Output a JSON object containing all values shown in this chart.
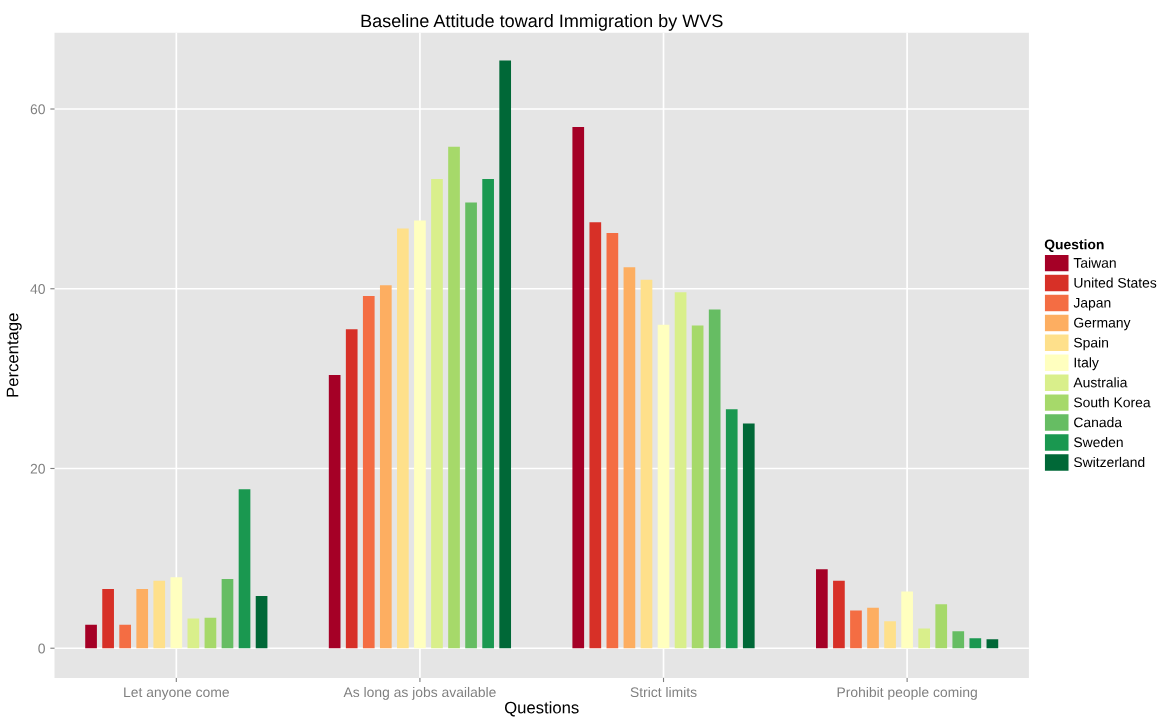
{
  "chart_data": {
    "type": "bar",
    "title": "Baseline Attitude toward Immigration by WVS",
    "xlabel": "Questions",
    "ylabel": "Percentage",
    "legend_title": "Question",
    "categories": [
      "Let anyone come",
      "As long as jobs available",
      "Strict limits",
      "Prohibit people coming"
    ],
    "series": [
      {
        "name": "Taiwan",
        "color": "#a50026",
        "values": [
          2.6,
          30.4,
          58.0,
          8.8
        ]
      },
      {
        "name": "United States",
        "color": "#d73027",
        "values": [
          6.6,
          35.5,
          47.4,
          7.5
        ]
      },
      {
        "name": "Japan",
        "color": "#f46d43",
        "values": [
          2.6,
          39.2,
          46.2,
          4.2
        ]
      },
      {
        "name": "Germany",
        "color": "#fdae61",
        "values": [
          6.6,
          40.4,
          42.4,
          4.5
        ]
      },
      {
        "name": "Spain",
        "color": "#fee08b",
        "values": [
          7.5,
          46.7,
          41.0,
          3.0
        ]
      },
      {
        "name": "Italy",
        "color": "#ffffbf",
        "values": [
          7.9,
          47.6,
          36.0,
          6.3
        ]
      },
      {
        "name": "Australia",
        "color": "#d9ef8b",
        "values": [
          3.3,
          52.2,
          39.6,
          2.2
        ]
      },
      {
        "name": "South Korea",
        "color": "#a6d96a",
        "values": [
          3.4,
          55.8,
          35.9,
          4.9
        ]
      },
      {
        "name": "Canada",
        "color": "#66bd63",
        "values": [
          7.7,
          49.6,
          37.7,
          1.9
        ]
      },
      {
        "name": "Sweden",
        "color": "#1a9850",
        "values": [
          17.7,
          52.2,
          26.6,
          1.1
        ]
      },
      {
        "name": "Switzerland",
        "color": "#006837",
        "values": [
          5.8,
          65.4,
          25.0,
          1.0
        ]
      }
    ],
    "ylim": [
      -3.3,
      68.5
    ],
    "yticks": [
      0,
      20,
      40,
      60
    ],
    "grid": true,
    "legend": "right"
  }
}
